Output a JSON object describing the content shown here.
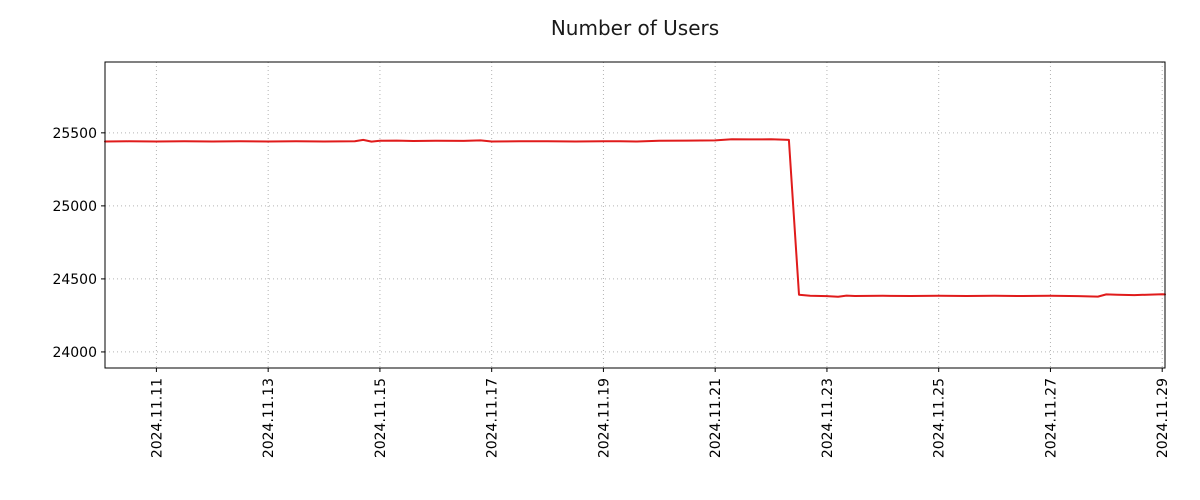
{
  "chart_data": {
    "type": "line",
    "title": "Number of Users",
    "xlabel": "",
    "ylabel": "",
    "grid": "dotted",
    "legend_position": "none",
    "axis_color": "#000000",
    "grid_color": "#b3b3b3",
    "xlim": [
      10.08,
      29.05
    ],
    "ylim": [
      23890,
      25985
    ],
    "y_ticks": [
      24000,
      24500,
      25000,
      25500
    ],
    "x_ticks": [
      {
        "day": 11,
        "label": "2024.11.11"
      },
      {
        "day": 13,
        "label": "2024.11.13"
      },
      {
        "day": 15,
        "label": "2024.11.15"
      },
      {
        "day": 17,
        "label": "2024.11.17"
      },
      {
        "day": 19,
        "label": "2024.11.19"
      },
      {
        "day": 21,
        "label": "2024.11.21"
      },
      {
        "day": 23,
        "label": "2024.11.23"
      },
      {
        "day": 25,
        "label": "2024.11.25"
      },
      {
        "day": 27,
        "label": "2024.11.27"
      },
      {
        "day": 29,
        "label": "2024.11.29"
      }
    ],
    "series": [
      {
        "name": "Number of Users",
        "color": "#e01b1b",
        "line_width": 2,
        "points": [
          [
            10.08,
            25441
          ],
          [
            10.5,
            25442
          ],
          [
            11.0,
            25441
          ],
          [
            11.5,
            25442
          ],
          [
            12.0,
            25441
          ],
          [
            12.5,
            25442
          ],
          [
            13.0,
            25441
          ],
          [
            13.5,
            25442
          ],
          [
            14.0,
            25441
          ],
          [
            14.55,
            25443
          ],
          [
            14.7,
            25452
          ],
          [
            14.85,
            25440
          ],
          [
            15.0,
            25446
          ],
          [
            15.3,
            25447
          ],
          [
            15.6,
            25444
          ],
          [
            16.0,
            25446
          ],
          [
            16.5,
            25445
          ],
          [
            16.8,
            25448
          ],
          [
            17.0,
            25441
          ],
          [
            17.5,
            25442
          ],
          [
            18.0,
            25442
          ],
          [
            18.5,
            25441
          ],
          [
            19.0,
            25443
          ],
          [
            19.3,
            25442
          ],
          [
            19.6,
            25441
          ],
          [
            20.0,
            25446
          ],
          [
            20.5,
            25447
          ],
          [
            21.0,
            25448
          ],
          [
            21.3,
            25456
          ],
          [
            21.6,
            25455
          ],
          [
            22.0,
            25456
          ],
          [
            22.32,
            25452
          ],
          [
            22.5,
            24392
          ],
          [
            22.7,
            24385
          ],
          [
            23.0,
            24382
          ],
          [
            23.2,
            24378
          ],
          [
            23.35,
            24386
          ],
          [
            23.5,
            24383
          ],
          [
            24.0,
            24384
          ],
          [
            24.5,
            24383
          ],
          [
            25.0,
            24384
          ],
          [
            25.5,
            24383
          ],
          [
            26.0,
            24384
          ],
          [
            26.5,
            24383
          ],
          [
            27.0,
            24384
          ],
          [
            27.5,
            24382
          ],
          [
            27.85,
            24379
          ],
          [
            28.0,
            24394
          ],
          [
            28.2,
            24391
          ],
          [
            28.5,
            24389
          ],
          [
            29.0,
            24395
          ],
          [
            29.05,
            24394
          ]
        ]
      }
    ]
  }
}
